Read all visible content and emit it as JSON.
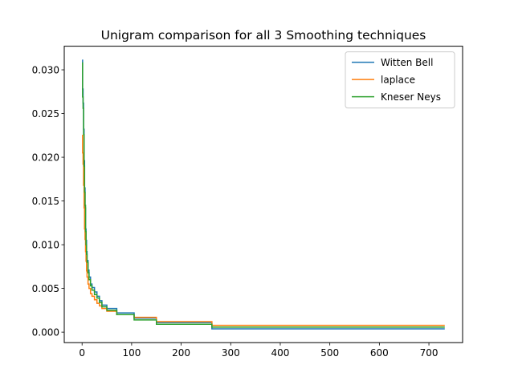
{
  "chart_data": {
    "type": "line",
    "title": "Unigram comparison for all 3 Smoothing techniques",
    "xlabel": "",
    "ylabel": "",
    "xlim": [
      -36,
      768
    ],
    "ylim": [
      -0.0012,
      0.0327
    ],
    "x_ticks": [
      0,
      100,
      200,
      300,
      400,
      500,
      600,
      700
    ],
    "y_ticks": [
      0.0,
      0.005,
      0.01,
      0.015,
      0.02,
      0.025,
      0.03
    ],
    "y_tick_labels": [
      "0.000",
      "0.005",
      "0.010",
      "0.015",
      "0.020",
      "0.025",
      "0.030"
    ],
    "grid": false,
    "legend_position": "top-right",
    "series": [
      {
        "name": "Witten Bell",
        "color": "#1f77b4",
        "step": true,
        "x": [
          0,
          1,
          2,
          3,
          4,
          5,
          6,
          7,
          8,
          9,
          10,
          12,
          14,
          17,
          20,
          25,
          30,
          35,
          40,
          50,
          70,
          105,
          150,
          262,
          732
        ],
        "y": [
          0.0311,
          0.0278,
          0.0262,
          0.0232,
          0.0196,
          0.0165,
          0.0142,
          0.0118,
          0.0105,
          0.0092,
          0.0082,
          0.0071,
          0.0063,
          0.0055,
          0.0051,
          0.0046,
          0.0041,
          0.0036,
          0.0031,
          0.0027,
          0.0022,
          0.0016,
          0.0011,
          0.00038,
          0.00038
        ]
      },
      {
        "name": "laplace",
        "color": "#ff7f0e",
        "step": true,
        "x": [
          0,
          1,
          2,
          3,
          4,
          5,
          6,
          7,
          8,
          9,
          10,
          12,
          14,
          17,
          20,
          25,
          30,
          35,
          40,
          50,
          70,
          105,
          150,
          262,
          732
        ],
        "y": [
          0.0225,
          0.0205,
          0.0192,
          0.0168,
          0.0142,
          0.0118,
          0.0106,
          0.0092,
          0.0081,
          0.007,
          0.0063,
          0.0055,
          0.005,
          0.0044,
          0.0041,
          0.0037,
          0.0033,
          0.003,
          0.0027,
          0.0024,
          0.002,
          0.0017,
          0.0012,
          0.00078,
          0.00078
        ]
      },
      {
        "name": "Kneser Neys",
        "color": "#2ca02c",
        "step": true,
        "x": [
          0,
          1,
          2,
          3,
          4,
          5,
          6,
          7,
          8,
          9,
          10,
          12,
          14,
          17,
          20,
          25,
          30,
          35,
          40,
          50,
          70,
          105,
          150,
          262,
          732
        ],
        "y": [
          0.0308,
          0.0269,
          0.0256,
          0.0226,
          0.019,
          0.016,
          0.0145,
          0.0115,
          0.01,
          0.0089,
          0.008,
          0.0068,
          0.006,
          0.0053,
          0.0048,
          0.0043,
          0.0039,
          0.0034,
          0.0029,
          0.0025,
          0.002,
          0.0014,
          0.0009,
          0.00057,
          0.00057
        ]
      }
    ]
  }
}
